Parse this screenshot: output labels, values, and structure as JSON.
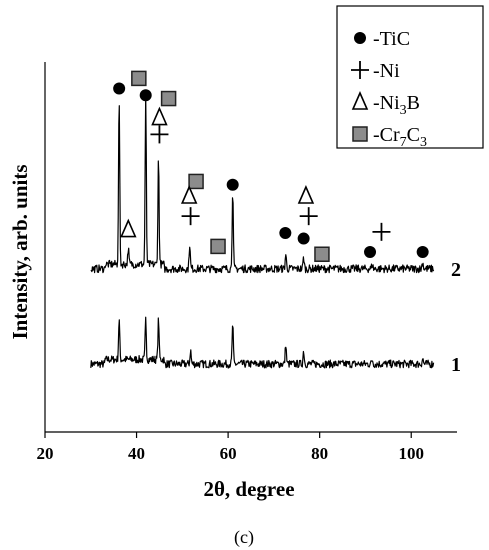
{
  "chart_data": {
    "type": "line",
    "xlabel": "2θ, degree",
    "ylabel": "Intensity, arb. units",
    "xlim": [
      20,
      110
    ],
    "xticks": [
      "20",
      "40",
      "60",
      "80",
      "100"
    ],
    "xticks_values": [
      20,
      40,
      60,
      80,
      100
    ],
    "panel_label": "(c)",
    "series": [
      {
        "name": "1",
        "x_range": [
          30,
          105
        ],
        "baseline": 0.0,
        "peaks": [
          {
            "x": 36.2,
            "h": 0.36
          },
          {
            "x": 42.0,
            "h": 0.36
          },
          {
            "x": 44.8,
            "h": 0.36
          },
          {
            "x": 51.8,
            "h": 0.12
          },
          {
            "x": 61.0,
            "h": 0.36
          },
          {
            "x": 72.6,
            "h": 0.18
          },
          {
            "x": 76.5,
            "h": 0.12
          },
          {
            "x": 91.5,
            "h": 0.04
          },
          {
            "x": 102.5,
            "h": 0.05
          }
        ]
      },
      {
        "name": "2",
        "x_range": [
          30,
          105
        ],
        "baseline": 0.85,
        "peaks": [
          {
            "x": 36.2,
            "h": 1.5
          },
          {
            "x": 38.2,
            "h": 0.14
          },
          {
            "x": 42.0,
            "h": 1.5
          },
          {
            "x": 44.8,
            "h": 0.95
          },
          {
            "x": 51.6,
            "h": 0.22
          },
          {
            "x": 61.0,
            "h": 0.7
          },
          {
            "x": 72.6,
            "h": 0.13
          },
          {
            "x": 76.5,
            "h": 0.1
          },
          {
            "x": 91.5,
            "h": 0.04
          },
          {
            "x": 102.5,
            "h": 0.06
          }
        ]
      }
    ],
    "legend": {
      "placement": "top-right",
      "entries": [
        {
          "symbol": "circle",
          "label": "-TiC"
        },
        {
          "symbol": "plus",
          "label": "-Ni"
        },
        {
          "symbol": "triangle",
          "label": "-Ni",
          "sub": "3",
          "tail": "B"
        },
        {
          "symbol": "square",
          "label": "-Cr",
          "sub": "7",
          "tail": "C",
          "sub2": "3"
        }
      ]
    },
    "peak_markers": [
      {
        "symbol": "circle",
        "x": 36.2,
        "y": 2.46
      },
      {
        "symbol": "square",
        "x": 40.5,
        "y": 2.55
      },
      {
        "symbol": "circle",
        "x": 42.0,
        "y": 2.4
      },
      {
        "symbol": "square",
        "x": 47.0,
        "y": 2.37
      },
      {
        "symbol": "triangle",
        "x": 45.0,
        "y": 2.2
      },
      {
        "symbol": "plus",
        "x": 45.0,
        "y": 2.05
      },
      {
        "symbol": "square",
        "x": 53.0,
        "y": 1.63
      },
      {
        "symbol": "circle",
        "x": 61.0,
        "y": 1.6
      },
      {
        "symbol": "triangle",
        "x": 51.5,
        "y": 1.5
      },
      {
        "symbol": "plus",
        "x": 51.8,
        "y": 1.32
      },
      {
        "symbol": "triangle",
        "x": 38.2,
        "y": 1.2
      },
      {
        "symbol": "triangle",
        "x": 77.0,
        "y": 1.5
      },
      {
        "symbol": "plus",
        "x": 77.6,
        "y": 1.32
      },
      {
        "symbol": "circle",
        "x": 72.5,
        "y": 1.17
      },
      {
        "symbol": "circle",
        "x": 76.5,
        "y": 1.12
      },
      {
        "symbol": "square",
        "x": 57.8,
        "y": 1.05
      },
      {
        "symbol": "square",
        "x": 80.5,
        "y": 0.98
      },
      {
        "symbol": "plus",
        "x": 93.5,
        "y": 1.18
      },
      {
        "symbol": "circle",
        "x": 91.0,
        "y": 1.0
      },
      {
        "symbol": "circle",
        "x": 102.5,
        "y": 1.0
      }
    ],
    "trace_labels": [
      {
        "text": "2",
        "series": "2"
      },
      {
        "text": "1",
        "series": "1"
      }
    ]
  }
}
